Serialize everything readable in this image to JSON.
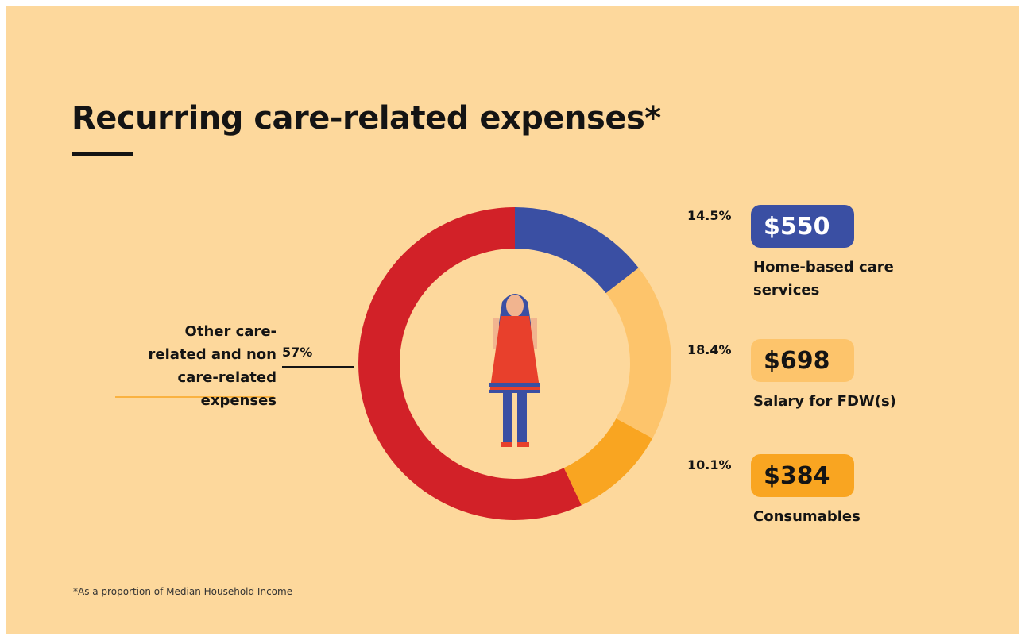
{
  "chart_data": {
    "type": "donut",
    "title": "Recurring care-related expenses*",
    "categories": [
      "Home-based care services",
      "Salary for FDW(s)",
      "Consumables",
      "Other care-related and non care-related expenses"
    ],
    "values": [
      14.5,
      18.4,
      10.1,
      57
    ],
    "value_labels": [
      "14.5%",
      "18.4%",
      "10.1%",
      "57%"
    ],
    "colors": [
      "#3a4fa3",
      "#fdc46b",
      "#f9a521",
      "#d22128"
    ],
    "amounts": [
      "$550",
      "$698",
      "$384"
    ],
    "footnote": "*As a proportion of Median Household Income"
  }
}
